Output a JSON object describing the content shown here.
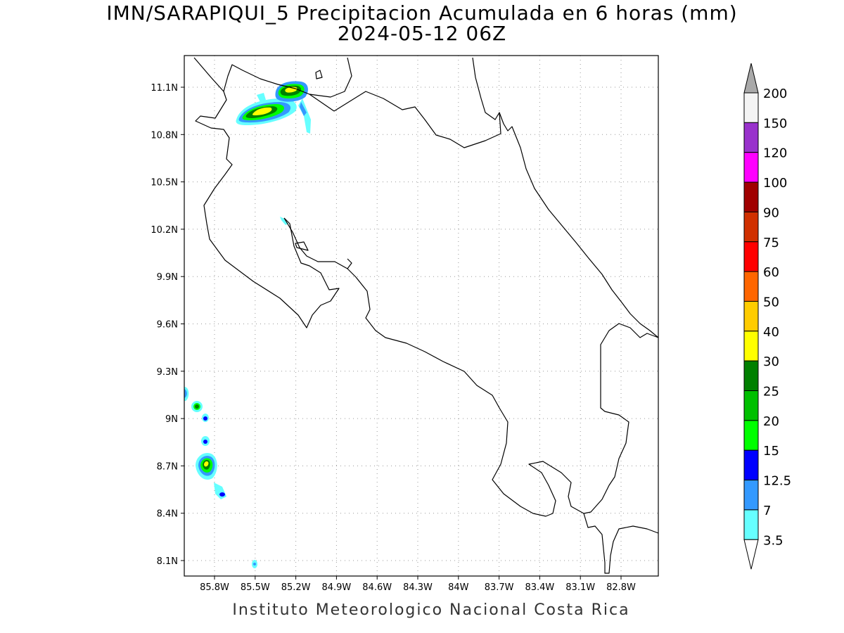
{
  "title": {
    "line1": "IMN/SARAPIQUI_5 Precipitacion Acumulada en 6 horas (mm)",
    "line2": "2024-05-12 06Z"
  },
  "footer": "Instituto Meteorologico Nacional Costa Rica",
  "map": {
    "lon_range": [
      -86.05,
      -83.0
    ],
    "lat_range": [
      8.0,
      11.3
    ],
    "lat_ticks": [
      "11.1N",
      "10.8N",
      "10.5N",
      "10.2N",
      "9.9N",
      "9.6N",
      "9.3N",
      "9N",
      "8.7N",
      "8.4N",
      "8.1N"
    ],
    "lon_ticks": [
      "85.8W",
      "85.5W",
      "85.2W",
      "84.9W",
      "84.6W",
      "84.3W",
      "84W",
      "83.7W",
      "83.4W",
      "83.1W",
      "82.8W"
    ],
    "grid": "dotted",
    "precip_cells": [
      {
        "region": "north-gulf-of-santa-elena",
        "max_mm": 40
      },
      {
        "region": "la-cruz-guanacaste",
        "max_mm": 40
      },
      {
        "region": "pacific-ocean-southwest",
        "max_mm": 40
      }
    ]
  },
  "colorbar": {
    "labels": [
      "200",
      "150",
      "120",
      "100",
      "90",
      "75",
      "60",
      "50",
      "40",
      "30",
      "25",
      "20",
      "15",
      "12.5",
      "7",
      "3.5"
    ],
    "colors": [
      "#f4f4f4",
      "#9932cc",
      "#ff00ff",
      "#a00000",
      "#d03000",
      "#ff0000",
      "#ff6600",
      "#ffcc00",
      "#ffff00",
      "#008000",
      "#00c000",
      "#00ff00",
      "#0000ff",
      "#3399ff",
      "#66ffff"
    ],
    "top_arrow_color": "#a9a9a9",
    "bottom_arrow_color": "#ffffff"
  }
}
